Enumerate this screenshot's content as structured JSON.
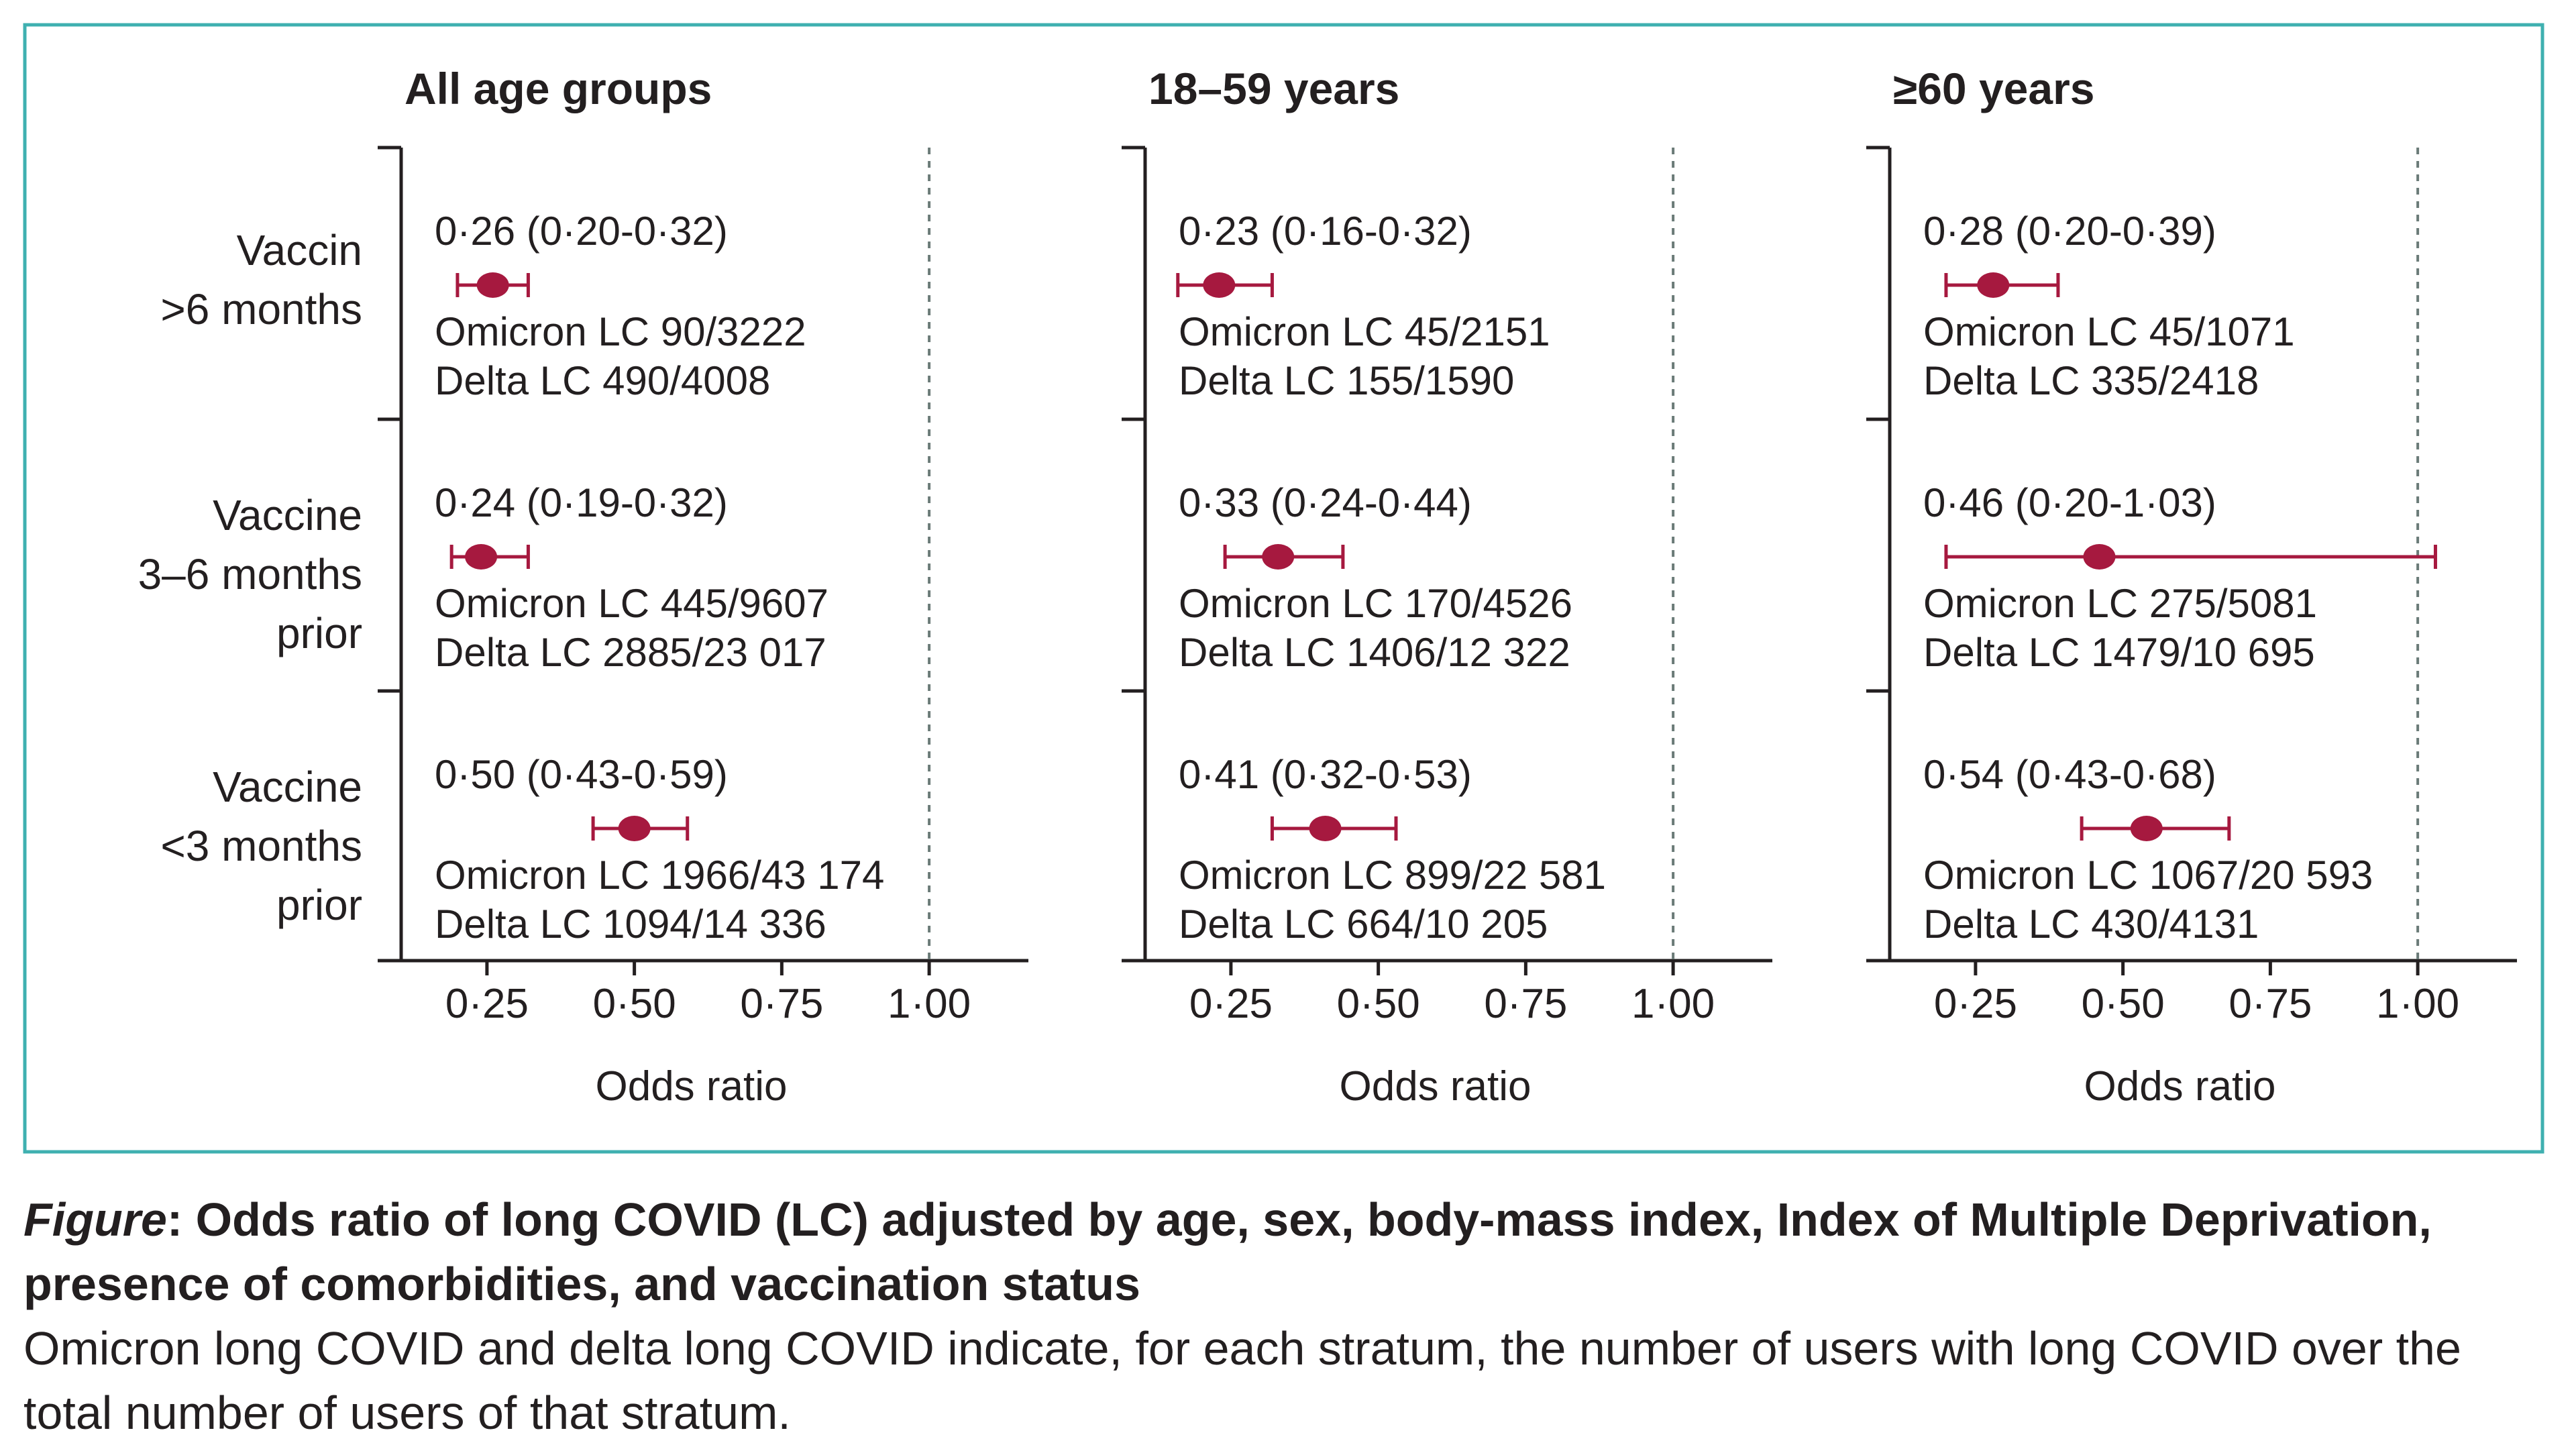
{
  "figure": {
    "caption_label": "Figure",
    "caption_title": ": Odds ratio of long COVID (LC) adjusted by age, sex, body-mass index, Index of Multiple Deprivation, presence of comorbidities, and vaccination status",
    "caption_body": "Omicron long COVID and delta long COVID indicate, for each stratum, the number of users with long COVID over the total number of users of that stratum."
  },
  "colors": {
    "frame": "#3fb0b0",
    "marker": "#a6193f",
    "axis": "#231f20",
    "reference_line": "#6b7b78"
  },
  "chart_data": {
    "type": "scatter",
    "subtype": "forest-plot",
    "xlabel": "Odds ratio",
    "xlim": [
      0.15,
      1.1
    ],
    "xticks": [
      0.25,
      0.5,
      0.75,
      1.0
    ],
    "xtick_labels": [
      "0·25",
      "0·50",
      "0·75",
      "1·00"
    ],
    "reference_line": 1.0,
    "grid": false,
    "row_labels": [
      [
        "Vaccin",
        ">6 months"
      ],
      [
        "Vaccine",
        "3–6 months",
        "prior"
      ],
      [
        "Vaccine",
        "<3 months",
        "prior"
      ]
    ],
    "panels": [
      {
        "title": "All age groups",
        "rows": [
          {
            "or": 0.26,
            "lo": 0.2,
            "hi": 0.32,
            "ci_text": "0·26 (0·20-0·32)",
            "omicron": "Omicron LC 90/3222",
            "delta": "Delta LC 490/4008"
          },
          {
            "or": 0.24,
            "lo": 0.19,
            "hi": 0.32,
            "ci_text": "0·24 (0·19-0·32)",
            "omicron": "Omicron LC 445/9607",
            "delta": "Delta LC 2885/23 017"
          },
          {
            "or": 0.5,
            "lo": 0.43,
            "hi": 0.59,
            "ci_text": "0·50 (0·43-0·59)",
            "omicron": "Omicron LC 1966/43 174",
            "delta": "Delta LC 1094/14 336"
          }
        ]
      },
      {
        "title": "18–59 years",
        "rows": [
          {
            "or": 0.23,
            "lo": 0.16,
            "hi": 0.32,
            "ci_text": "0·23 (0·16-0·32)",
            "omicron": "Omicron LC 45/2151",
            "delta": "Delta LC 155/1590"
          },
          {
            "or": 0.33,
            "lo": 0.24,
            "hi": 0.44,
            "ci_text": "0·33 (0·24-0·44)",
            "omicron": "Omicron LC 170/4526",
            "delta": "Delta LC 1406/12 322"
          },
          {
            "or": 0.41,
            "lo": 0.32,
            "hi": 0.53,
            "ci_text": "0·41 (0·32-0·53)",
            "omicron": "Omicron LC 899/22 581",
            "delta": "Delta LC 664/10 205"
          }
        ]
      },
      {
        "title": "≥60 years",
        "rows": [
          {
            "or": 0.28,
            "lo": 0.2,
            "hi": 0.39,
            "ci_text": "0·28 (0·20-0·39)",
            "omicron": "Omicron LC 45/1071",
            "delta": "Delta LC 335/2418"
          },
          {
            "or": 0.46,
            "lo": 0.2,
            "hi": 1.03,
            "ci_text": "0·46 (0·20-1·03)",
            "omicron": "Omicron LC 275/5081",
            "delta": "Delta LC 1479/10 695"
          },
          {
            "or": 0.54,
            "lo": 0.43,
            "hi": 0.68,
            "ci_text": "0·54 (0·43-0·68)",
            "omicron": "Omicron LC 1067/20 593",
            "delta": "Delta LC 430/4131"
          }
        ]
      }
    ]
  }
}
